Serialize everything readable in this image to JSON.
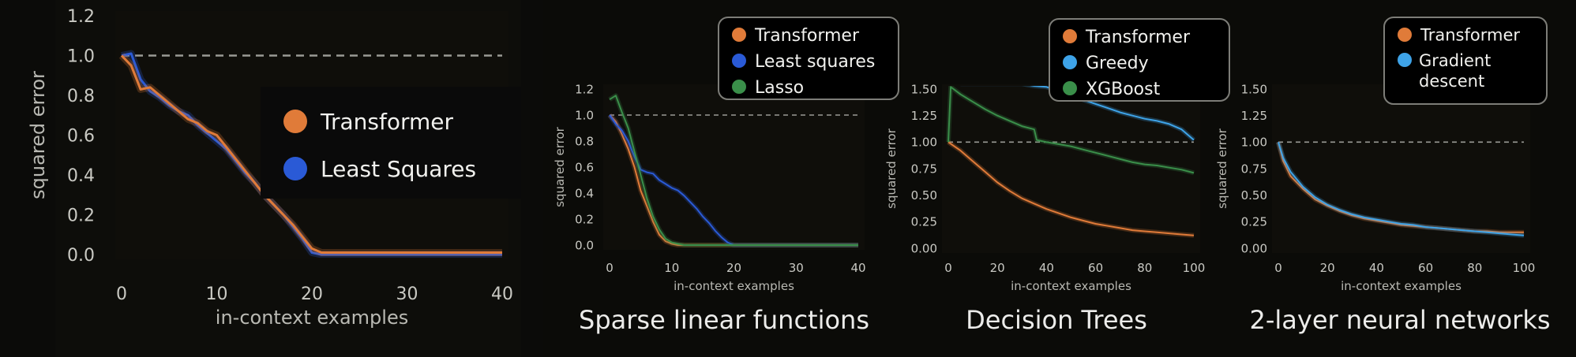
{
  "colors": {
    "background": "#0b0b09",
    "transformer": "#e07b39",
    "least_squares": "#2a5ad6",
    "lasso": "#3a8f4a",
    "greedy": "#3ea3e8",
    "xgboost": "#3a8f4a",
    "gradient_descent": "#3ea3e8",
    "baseline": "#9a9a95"
  },
  "chart_data": [
    {
      "type": "line",
      "caption": "",
      "xlabel": "in-context examples",
      "ylabel": "squared error",
      "xlim": [
        0,
        40
      ],
      "ylim": [
        0,
        1.2
      ],
      "xticks": [
        "0",
        "10",
        "20",
        "30",
        "40"
      ],
      "yticks": [
        "0.0",
        "0.2",
        "0.4",
        "0.6",
        "0.8",
        "1.0",
        "1.2"
      ],
      "legend_position": "center-right",
      "series": [
        {
          "name": "Transformer",
          "color": "#e07b39",
          "x": [
            0,
            1,
            2,
            3,
            4,
            5,
            6,
            7,
            8,
            9,
            10,
            11,
            12,
            13,
            14,
            15,
            16,
            17,
            18,
            19,
            20,
            21,
            22,
            23,
            24,
            25,
            26,
            27,
            28,
            29,
            30,
            31,
            32,
            33,
            34,
            35,
            36,
            37,
            38,
            39,
            40
          ],
          "y": [
            1.0,
            0.95,
            0.83,
            0.84,
            0.8,
            0.76,
            0.72,
            0.68,
            0.66,
            0.62,
            0.6,
            0.54,
            0.48,
            0.42,
            0.36,
            0.3,
            0.25,
            0.2,
            0.15,
            0.09,
            0.03,
            0.01,
            0.01,
            0.01,
            0.01,
            0.01,
            0.01,
            0.01,
            0.01,
            0.01,
            0.01,
            0.01,
            0.01,
            0.01,
            0.01,
            0.01,
            0.01,
            0.01,
            0.01,
            0.01,
            0.01
          ]
        },
        {
          "name": "Least Squares",
          "color": "#2a5ad6",
          "x": [
            0,
            1,
            2,
            3,
            4,
            5,
            6,
            7,
            8,
            9,
            10,
            11,
            12,
            13,
            14,
            15,
            16,
            17,
            18,
            19,
            20,
            21,
            22,
            23,
            24,
            25,
            26,
            27,
            28,
            29,
            30,
            31,
            32,
            33,
            34,
            35,
            36,
            37,
            38,
            39,
            40
          ],
          "y": [
            1.0,
            1.01,
            0.88,
            0.82,
            0.79,
            0.75,
            0.72,
            0.7,
            0.65,
            0.61,
            0.57,
            0.53,
            0.47,
            0.41,
            0.36,
            0.3,
            0.25,
            0.2,
            0.14,
            0.08,
            0.01,
            0.0,
            0.0,
            0.0,
            0.0,
            0.0,
            0.0,
            0.0,
            0.0,
            0.0,
            0.0,
            0.0,
            0.0,
            0.0,
            0.0,
            0.0,
            0.0,
            0.0,
            0.0,
            0.0,
            0.0
          ]
        }
      ],
      "baseline_y": 1.0
    },
    {
      "type": "line",
      "caption": "Sparse linear functions",
      "xlabel": "in-context examples",
      "ylabel": "squared error",
      "xlim": [
        0,
        40
      ],
      "ylim": [
        0,
        1.2
      ],
      "xticks": [
        "0",
        "10",
        "20",
        "30",
        "40"
      ],
      "yticks": [
        "0.0",
        "0.2",
        "0.4",
        "0.6",
        "0.8",
        "1.0",
        "1.2"
      ],
      "legend_position": "top",
      "series": [
        {
          "name": "Transformer",
          "color": "#e07b39",
          "x": [
            0,
            1,
            2,
            3,
            4,
            5,
            6,
            7,
            8,
            9,
            10,
            11,
            12,
            13,
            14,
            15,
            20,
            25,
            30,
            35,
            40
          ],
          "y": [
            1.0,
            0.95,
            0.85,
            0.74,
            0.6,
            0.42,
            0.3,
            0.18,
            0.08,
            0.03,
            0.01,
            0.0,
            0.0,
            0.0,
            0.0,
            0.0,
            0.0,
            0.0,
            0.0,
            0.0,
            0.0
          ]
        },
        {
          "name": "Least squares",
          "color": "#2a5ad6",
          "x": [
            0,
            1,
            2,
            3,
            4,
            5,
            6,
            7,
            8,
            9,
            10,
            11,
            12,
            13,
            14,
            15,
            16,
            17,
            18,
            19,
            20,
            25,
            30,
            35,
            40
          ],
          "y": [
            1.0,
            0.93,
            0.88,
            0.8,
            0.68,
            0.58,
            0.56,
            0.55,
            0.5,
            0.47,
            0.44,
            0.42,
            0.38,
            0.33,
            0.28,
            0.22,
            0.17,
            0.11,
            0.06,
            0.02,
            0.0,
            0.0,
            0.0,
            0.0,
            0.0
          ]
        },
        {
          "name": "Lasso",
          "color": "#3a8f4a",
          "x": [
            0,
            1,
            2,
            3,
            4,
            5,
            6,
            7,
            8,
            9,
            10,
            11,
            12,
            13,
            14,
            15,
            20,
            25,
            30,
            35,
            40
          ],
          "y": [
            1.12,
            1.15,
            1.02,
            0.9,
            0.72,
            0.54,
            0.36,
            0.22,
            0.12,
            0.05,
            0.02,
            0.01,
            0.0,
            0.0,
            0.0,
            0.0,
            0.0,
            0.0,
            0.0,
            0.0,
            0.0
          ]
        }
      ],
      "baseline_y": 1.0
    },
    {
      "type": "line",
      "caption": "Decision Trees",
      "xlabel": "in-context examples",
      "ylabel": "squared error",
      "xlim": [
        0,
        100
      ],
      "ylim": [
        0,
        1.5
      ],
      "xticks": [
        "0",
        "20",
        "40",
        "60",
        "80",
        "100"
      ],
      "yticks": [
        "0.00",
        "0.25",
        "0.50",
        "0.75",
        "1.00",
        "1.25",
        "1.50"
      ],
      "legend_position": "top",
      "series": [
        {
          "name": "Transformer",
          "color": "#e07b39",
          "x": [
            0,
            5,
            10,
            15,
            20,
            25,
            30,
            35,
            40,
            45,
            50,
            55,
            60,
            65,
            70,
            75,
            80,
            85,
            90,
            95,
            100
          ],
          "y": [
            1.0,
            0.92,
            0.82,
            0.72,
            0.62,
            0.54,
            0.47,
            0.42,
            0.37,
            0.33,
            0.29,
            0.26,
            0.23,
            0.21,
            0.19,
            0.17,
            0.16,
            0.15,
            0.14,
            0.13,
            0.12
          ]
        },
        {
          "name": "Greedy",
          "color": "#3ea3e8",
          "x": [
            5,
            10,
            15,
            20,
            25,
            30,
            35,
            40,
            45,
            50,
            55,
            60,
            65,
            70,
            75,
            80,
            85,
            90,
            95,
            100
          ],
          "y": [
            1.55,
            1.55,
            1.55,
            1.55,
            1.55,
            1.55,
            1.53,
            1.52,
            1.48,
            1.44,
            1.4,
            1.36,
            1.32,
            1.28,
            1.25,
            1.22,
            1.2,
            1.17,
            1.12,
            1.02
          ]
        },
        {
          "name": "XGBoost",
          "color": "#3a8f4a",
          "x": [
            0,
            1,
            5,
            10,
            15,
            20,
            25,
            30,
            35,
            36,
            40,
            45,
            50,
            55,
            60,
            65,
            70,
            75,
            80,
            85,
            90,
            95,
            100
          ],
          "y": [
            1.0,
            1.52,
            1.45,
            1.38,
            1.31,
            1.25,
            1.2,
            1.15,
            1.12,
            1.02,
            1.0,
            0.98,
            0.96,
            0.93,
            0.9,
            0.87,
            0.84,
            0.81,
            0.79,
            0.78,
            0.76,
            0.74,
            0.71
          ]
        }
      ],
      "baseline_y": 1.0
    },
    {
      "type": "line",
      "caption": "2-layer neural networks",
      "xlabel": "in-context examples",
      "ylabel": "squared error",
      "xlim": [
        0,
        100
      ],
      "ylim": [
        0,
        1.5
      ],
      "xticks": [
        "0",
        "20",
        "40",
        "60",
        "80",
        "100"
      ],
      "yticks": [
        "0.00",
        "0.25",
        "0.50",
        "0.75",
        "1.00",
        "1.25",
        "1.50"
      ],
      "legend_position": "top",
      "series": [
        {
          "name": "Transformer",
          "color": "#e07b39",
          "x": [
            0,
            2,
            5,
            10,
            15,
            20,
            25,
            30,
            35,
            40,
            45,
            50,
            55,
            60,
            65,
            70,
            75,
            80,
            85,
            90,
            95,
            100
          ],
          "y": [
            1.0,
            0.82,
            0.68,
            0.56,
            0.46,
            0.4,
            0.35,
            0.31,
            0.28,
            0.26,
            0.24,
            0.22,
            0.21,
            0.2,
            0.19,
            0.18,
            0.17,
            0.16,
            0.16,
            0.15,
            0.15,
            0.15
          ]
        },
        {
          "name": "Gradient descent",
          "color": "#3ea3e8",
          "x": [
            0,
            2,
            5,
            10,
            15,
            20,
            25,
            30,
            35,
            40,
            45,
            50,
            55,
            60,
            65,
            70,
            75,
            80,
            85,
            90,
            95,
            100
          ],
          "y": [
            1.0,
            0.85,
            0.72,
            0.58,
            0.48,
            0.41,
            0.36,
            0.32,
            0.29,
            0.27,
            0.25,
            0.23,
            0.22,
            0.2,
            0.19,
            0.18,
            0.17,
            0.16,
            0.15,
            0.14,
            0.13,
            0.12
          ]
        }
      ],
      "baseline_y": 1.0
    }
  ]
}
